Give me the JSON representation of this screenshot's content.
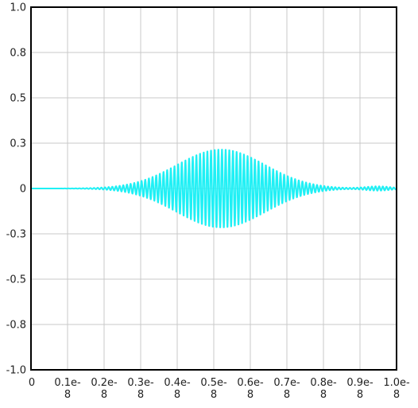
{
  "chart_data": {
    "type": "line",
    "title": "",
    "xlabel": "",
    "ylabel": "",
    "xlim": [
      0,
      1e-08
    ],
    "ylim": [
      -1.0,
      1.0
    ],
    "grid": true,
    "legend": "none",
    "x_ticks": [
      {
        "value": 0,
        "label": [
          "0"
        ]
      },
      {
        "value": 1e-09,
        "label": [
          "0.1e-",
          "8"
        ]
      },
      {
        "value": 2e-09,
        "label": [
          "0.2e-",
          "8"
        ]
      },
      {
        "value": 3e-09,
        "label": [
          "0.3e-",
          "8"
        ]
      },
      {
        "value": 4e-09,
        "label": [
          "0.4e-",
          "8"
        ]
      },
      {
        "value": 5e-09,
        "label": [
          "0.5e-",
          "8"
        ]
      },
      {
        "value": 6e-09,
        "label": [
          "0.6e-",
          "8"
        ]
      },
      {
        "value": 7e-09,
        "label": [
          "0.7e-",
          "8"
        ]
      },
      {
        "value": 8e-09,
        "label": [
          "0.8e-",
          "8"
        ]
      },
      {
        "value": 9e-09,
        "label": [
          "0.9e-",
          "8"
        ]
      },
      {
        "value": 1e-08,
        "label": [
          "1.0e-",
          "8"
        ]
      }
    ],
    "y_ticks": [
      {
        "value": 1.0,
        "label": "1.0"
      },
      {
        "value": 0.75,
        "label": "0.8"
      },
      {
        "value": 0.5,
        "label": "0.5"
      },
      {
        "value": 0.25,
        "label": "0.3"
      },
      {
        "value": 0,
        "label": "0"
      },
      {
        "value": -0.25,
        "label": "-0.3"
      },
      {
        "value": -0.5,
        "label": "-0.5"
      },
      {
        "value": -0.75,
        "label": "-0.8"
      },
      {
        "value": -1.0,
        "label": "-1.0"
      }
    ],
    "series": [
      {
        "color": "#1ff0f5",
        "shape": "modulated-sine",
        "envelope_peak": 0.22,
        "envelope_center_x": 5.2e-09,
        "envelope_width_x": 1.7e-09,
        "oscillation_period_x": 1e-10
      }
    ],
    "colors": {
      "grid": "#c8c8c8",
      "axis_frame": "#000000",
      "tick_text": "#222222",
      "background": "#ffffff"
    }
  }
}
